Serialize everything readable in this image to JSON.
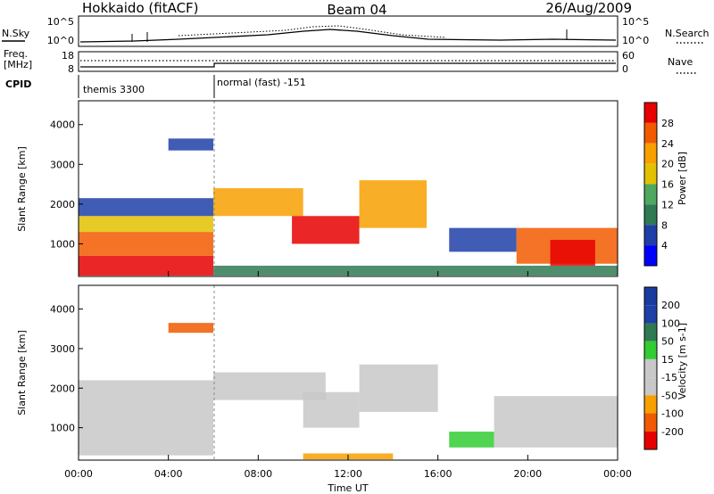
{
  "header": {
    "title": "Hokkaido (fitACF)",
    "beam": "Beam 04",
    "date": "26/Aug/2009"
  },
  "sky_panel": {
    "left_label": "N.Sky",
    "right_label": "N.Search",
    "left_ticks": [
      "10^5",
      "10^0"
    ],
    "right_ticks": [
      "10^5",
      "10^0"
    ]
  },
  "freq_panel": {
    "left_label_1": "Freq.",
    "left_label_2": "[MHz]",
    "left_ticks": [
      "18",
      "8"
    ],
    "right_label": "Nave",
    "right_ticks": [
      "60",
      "0"
    ]
  },
  "cpid": {
    "label": "CPID",
    "segments": [
      {
        "start_hour": 0,
        "name": "themis 3300"
      },
      {
        "start_hour": 6,
        "name": "normal (fast) -151"
      }
    ]
  },
  "colors": {
    "power_scale": [
      "#0000ff",
      "#1f3fa8",
      "#2f7a52",
      "#4fa860",
      "#e2c200",
      "#f7a000",
      "#f25a00",
      "#e60000"
    ],
    "velocity_scale": [
      "#e60000",
      "#f05a00",
      "#f7a000",
      "#c8c8c8",
      "#c8c8c8",
      "#33cc33",
      "#2f7a52",
      "#1f3fa8",
      "#1a3aa0"
    ]
  },
  "chart_data": [
    {
      "type": "heatmap",
      "name": "power-panel",
      "ylabel": "Slant Range [km]",
      "y_ticks": [
        "1000",
        "2000",
        "3000",
        "4000"
      ],
      "ylim": [
        180,
        4600
      ],
      "xlim_hours": [
        0,
        24
      ],
      "x_ticks": [
        "00:00",
        "04:00",
        "08:00",
        "12:00",
        "16:00",
        "20:00",
        "00:00"
      ],
      "colorbar_label": "Power [dB]",
      "colorbar_ticks": [
        "28",
        "24",
        "20",
        "16",
        "12",
        "8",
        "4"
      ],
      "regions": [
        {
          "t0": 0.0,
          "t1": 6.0,
          "r0": 200,
          "r1": 700,
          "level": 7
        },
        {
          "t0": 0.0,
          "t1": 6.0,
          "r0": 700,
          "r1": 1300,
          "level": 6
        },
        {
          "t0": 0.0,
          "t1": 6.0,
          "r0": 1300,
          "r1": 1700,
          "level": 4
        },
        {
          "t0": 0.0,
          "t1": 6.0,
          "r0": 1700,
          "r1": 2150,
          "level": 1
        },
        {
          "t0": 4.0,
          "t1": 6.0,
          "r0": 3350,
          "r1": 3650,
          "level": 1
        },
        {
          "t0": 6.0,
          "t1": 10.0,
          "r0": 1700,
          "r1": 2400,
          "level": 5
        },
        {
          "t0": 9.5,
          "t1": 12.5,
          "r0": 1000,
          "r1": 1700,
          "level": 7
        },
        {
          "t0": 12.5,
          "t1": 15.5,
          "r0": 1400,
          "r1": 2600,
          "level": 5
        },
        {
          "t0": 16.5,
          "t1": 19.5,
          "r0": 800,
          "r1": 1400,
          "level": 1
        },
        {
          "t0": 19.5,
          "t1": 24.0,
          "r0": 500,
          "r1": 1400,
          "level": 6
        },
        {
          "t0": 21.0,
          "t1": 23.0,
          "r0": 450,
          "r1": 1100,
          "level": 7
        },
        {
          "t0": 6.0,
          "t1": 24.0,
          "r0": 200,
          "r1": 450,
          "level": 2
        }
      ]
    },
    {
      "type": "heatmap",
      "name": "velocity-panel",
      "ylabel": "Slant Range [km]",
      "y_ticks": [
        "1000",
        "2000",
        "3000",
        "4000"
      ],
      "ylim": [
        180,
        4600
      ],
      "xlim_hours": [
        0,
        24
      ],
      "x_ticks": [
        "00:00",
        "04:00",
        "08:00",
        "12:00",
        "16:00",
        "20:00",
        "00:00"
      ],
      "xlabel": "Time UT",
      "colorbar_label": "Velocity [m s-1]",
      "colorbar_ticks": [
        "200",
        "100",
        "50",
        "15",
        "-15",
        "-50",
        "-100",
        "-200"
      ],
      "regions": [
        {
          "t0": 0.0,
          "t1": 6.0,
          "r0": 300,
          "r1": 2200,
          "level": 3
        },
        {
          "t0": 6.0,
          "t1": 11.0,
          "r0": 1700,
          "r1": 2400,
          "level": 3
        },
        {
          "t0": 10.0,
          "t1": 12.5,
          "r0": 1000,
          "r1": 1900,
          "level": 3
        },
        {
          "t0": 12.5,
          "t1": 16.0,
          "r0": 1400,
          "r1": 2600,
          "level": 3
        },
        {
          "t0": 16.5,
          "t1": 18.5,
          "r0": 500,
          "r1": 900,
          "level": 5
        },
        {
          "t0": 18.5,
          "t1": 24.0,
          "r0": 500,
          "r1": 1800,
          "level": 3
        },
        {
          "t0": 10.0,
          "t1": 14.0,
          "r0": 200,
          "r1": 350,
          "level": 2
        },
        {
          "t0": 4.0,
          "t1": 6.0,
          "r0": 3400,
          "r1": 3650,
          "level": 1
        }
      ]
    }
  ]
}
